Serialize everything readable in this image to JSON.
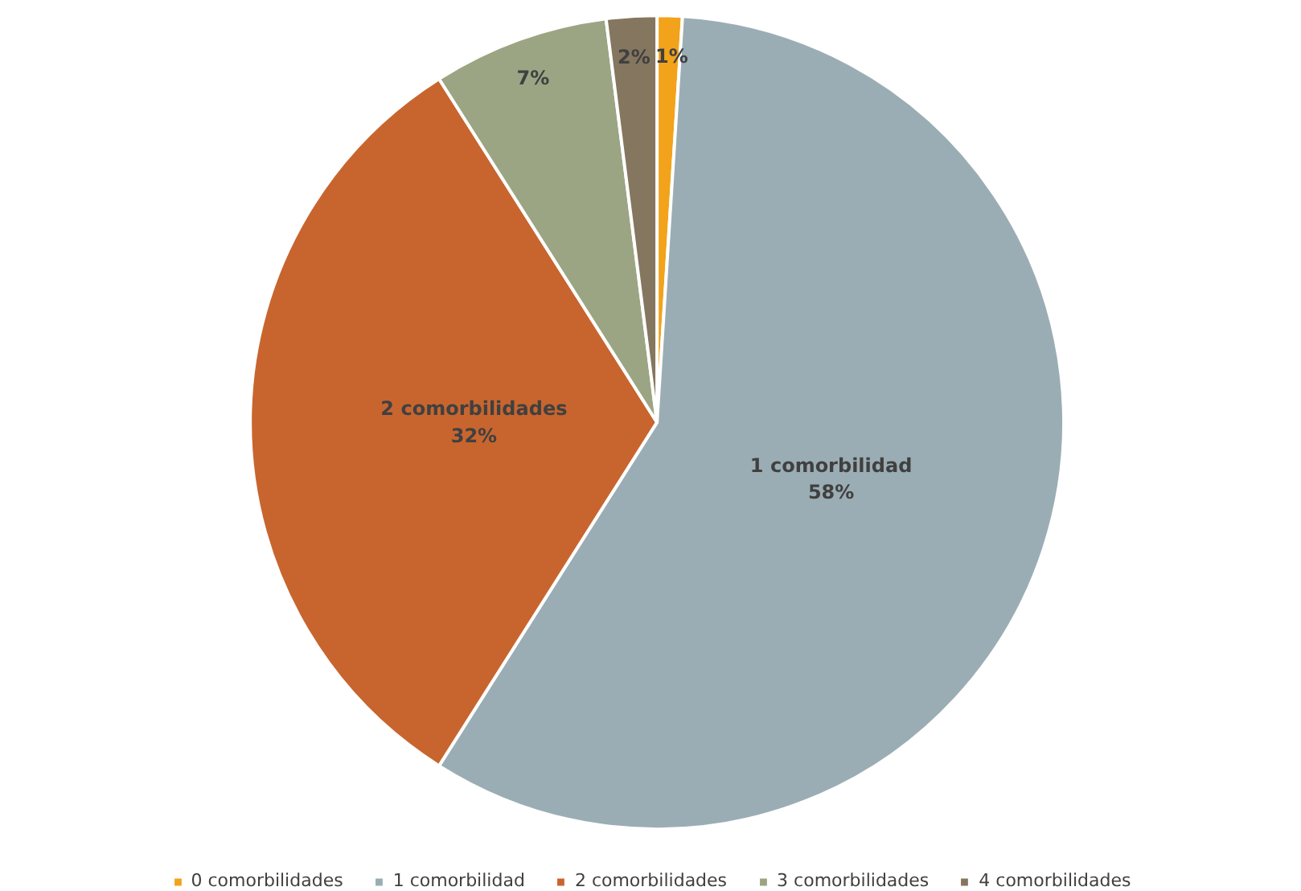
{
  "chart_data": {
    "type": "pie",
    "categories": [
      "0 comorbilidades",
      "1 comorbilidad",
      "2 comorbilidades",
      "3 comorbilidades",
      "4 comorbilidades"
    ],
    "values": [
      1,
      58,
      32,
      7,
      2
    ],
    "colors": [
      "#f2a31b",
      "#9badb4",
      "#c8652e",
      "#9ba583",
      "#85765f"
    ],
    "value_labels": [
      "1%",
      "1 comorbilidad\n58%",
      "2 comorbilidades\n32%",
      "7%",
      "2%"
    ],
    "legend": "bottom"
  }
}
